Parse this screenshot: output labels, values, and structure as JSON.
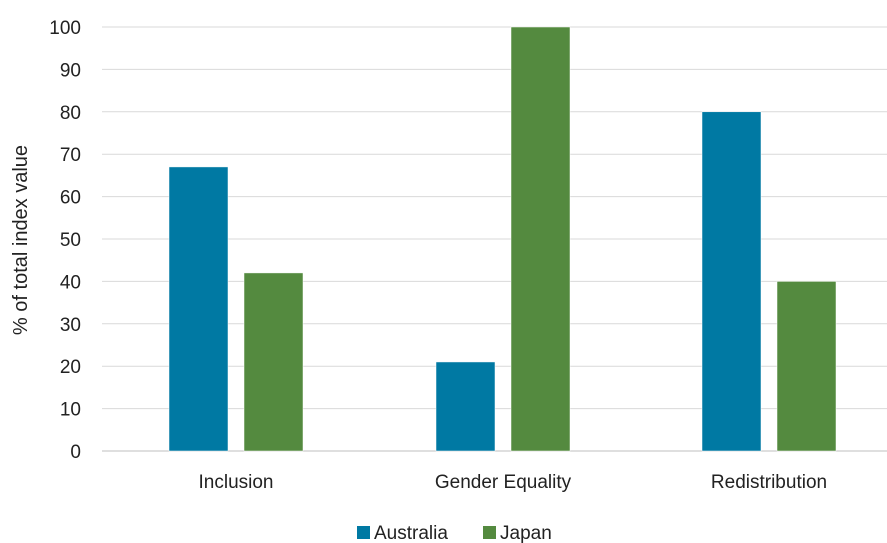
{
  "colors": {
    "australia": "#0079a3",
    "japan": "#548a3f",
    "grid": "#d9d9d9"
  },
  "chart_data": {
    "type": "bar",
    "title": "",
    "xlabel": "",
    "ylabel": "% of total index value",
    "categories": [
      "Inclusion",
      "Gender Equality",
      "Redistribution"
    ],
    "series": [
      {
        "name": "Australia",
        "values": [
          67,
          21,
          80
        ],
        "color": "#0079a3"
      },
      {
        "name": "Japan",
        "values": [
          42,
          100,
          40
        ],
        "color": "#548a3f"
      }
    ],
    "ylim": [
      0,
      100
    ],
    "yticks": [
      0,
      10,
      20,
      30,
      40,
      50,
      60,
      70,
      80,
      90,
      100
    ],
    "grid": true,
    "legend": "bottom"
  }
}
